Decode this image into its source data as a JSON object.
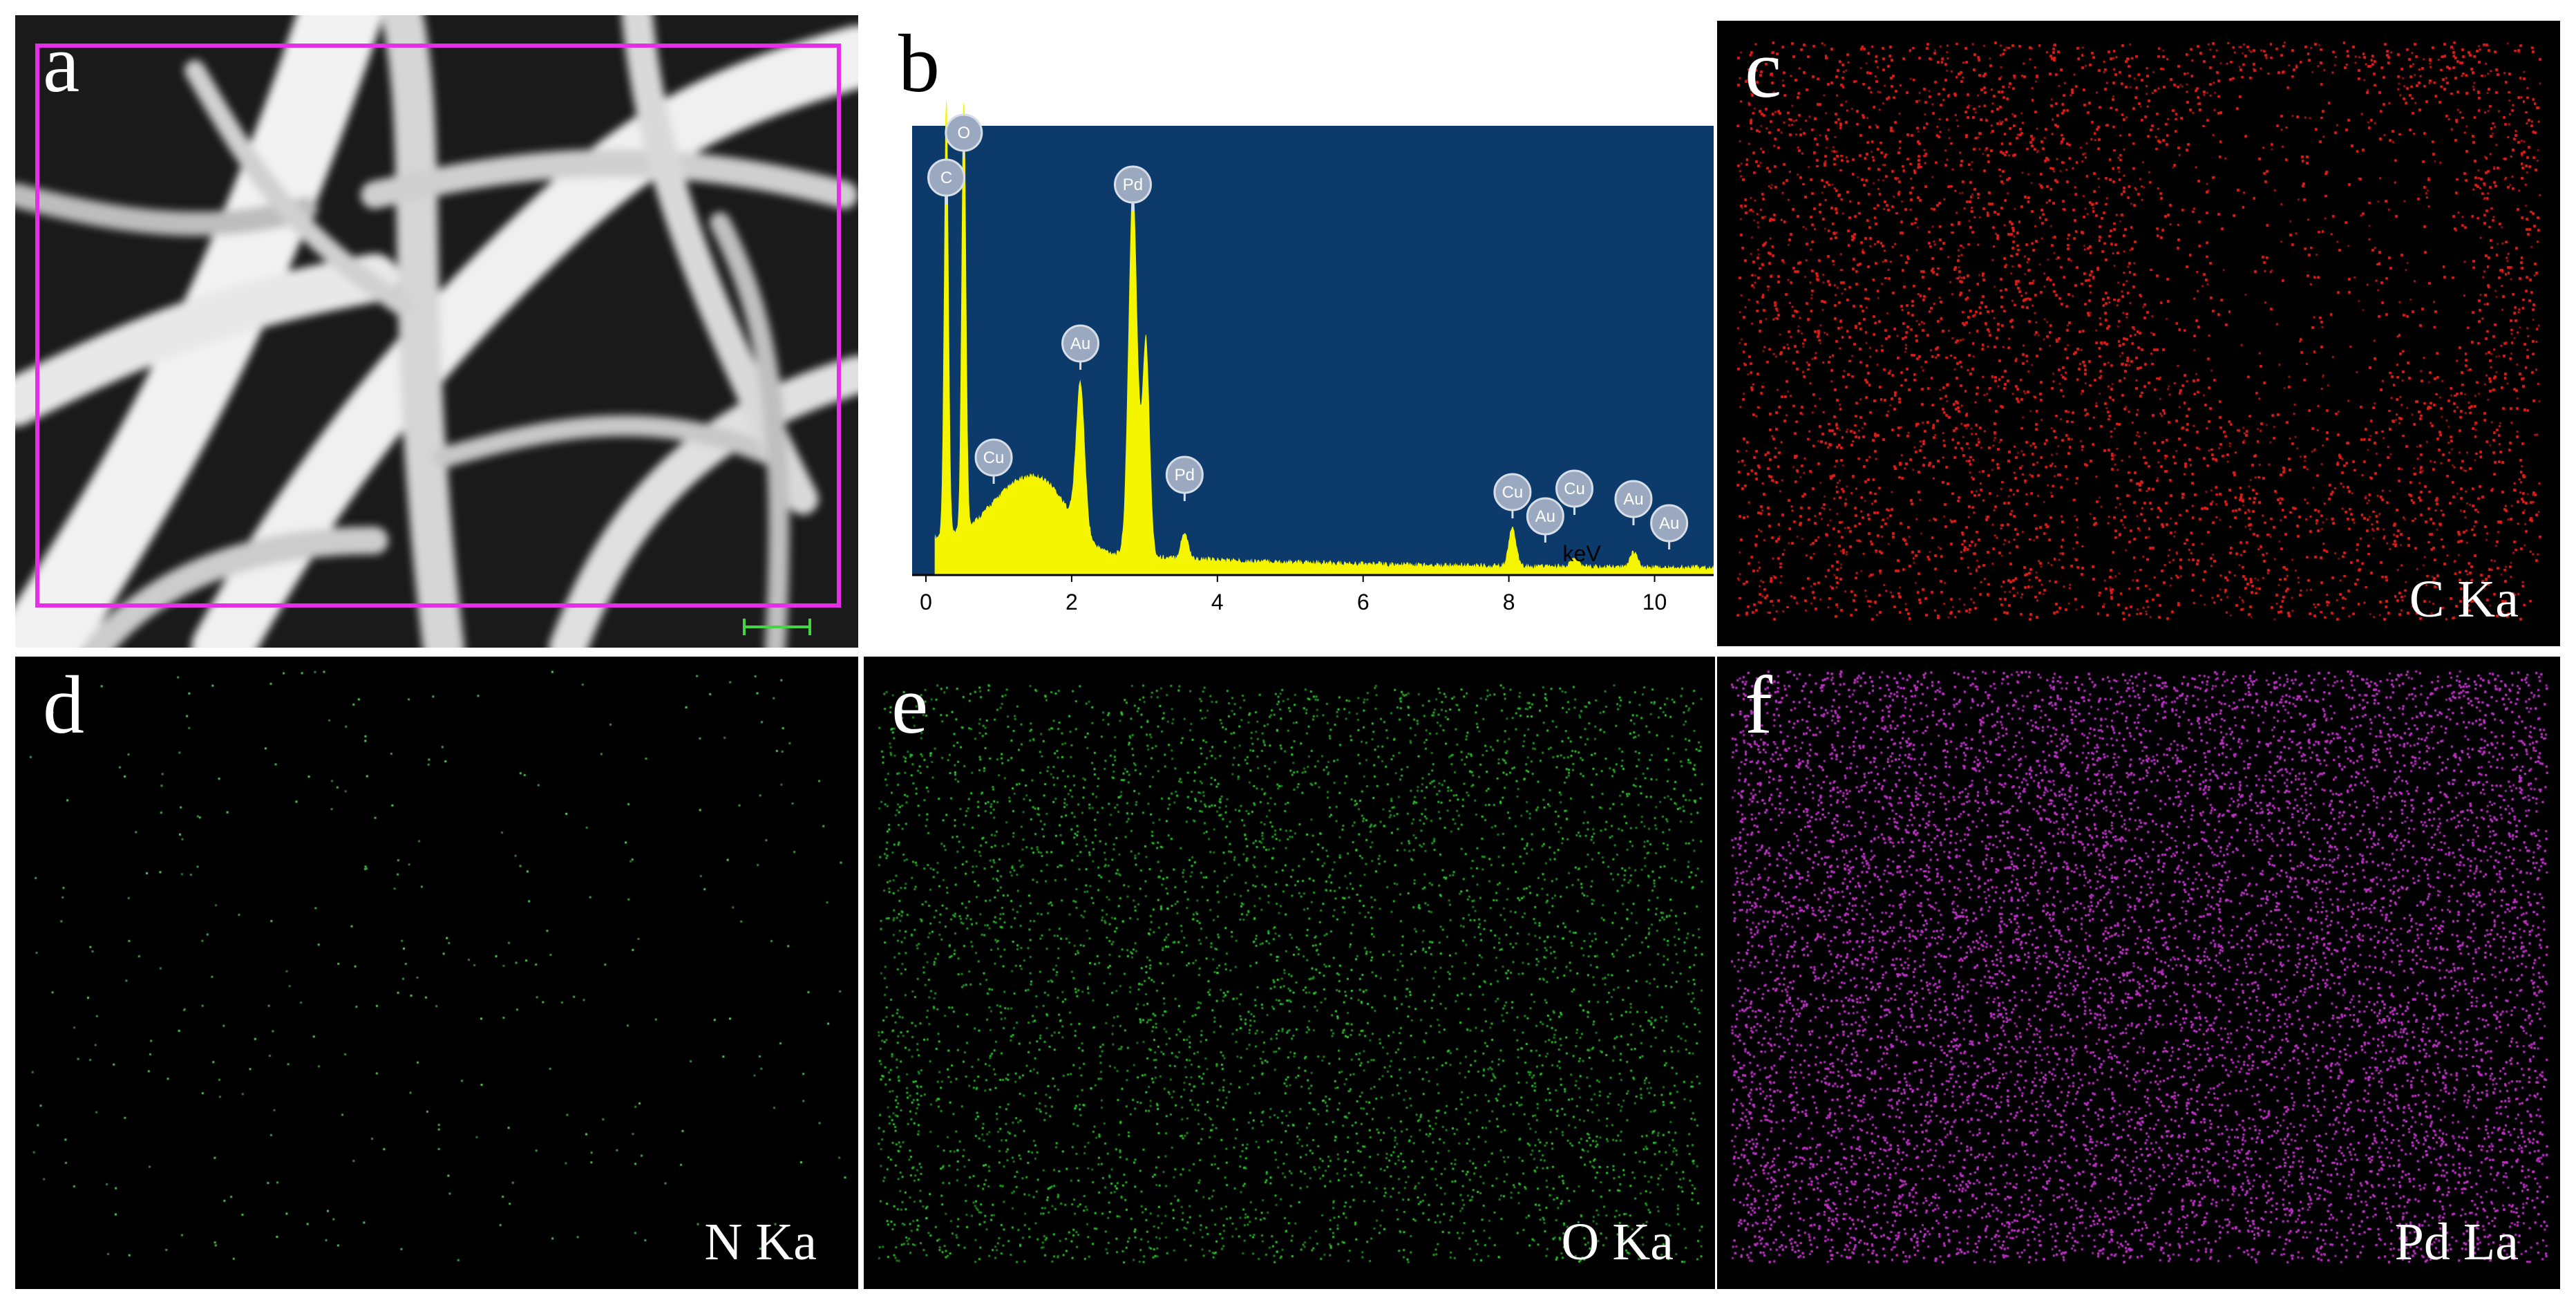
{
  "panels": {
    "a": {
      "label": "a"
    },
    "b": {
      "label": "b",
      "x_unit": "keV",
      "x_ticks": [
        "0",
        "2",
        "4",
        "6",
        "8",
        "10"
      ]
    },
    "c": {
      "label": "c",
      "map_label": "C Ka",
      "color": "#e0201a"
    },
    "d": {
      "label": "d",
      "map_label": "N Ka",
      "color": "#5fd35f"
    },
    "e": {
      "label": "e",
      "map_label": "O Ka",
      "color": "#2fcf2f"
    },
    "f": {
      "label": "f",
      "map_label": "Pd La",
      "color": "#c032c8"
    }
  },
  "chart_data": {
    "type": "line",
    "x_unit": "keV",
    "xlim": [
      0,
      11
    ],
    "x_ticks": [
      0,
      2,
      4,
      6,
      8,
      10
    ],
    "peaks": [
      {
        "element": "C",
        "energy": 0.28
      },
      {
        "element": "O",
        "energy": 0.52
      },
      {
        "element": "Cu",
        "energy": 0.93
      },
      {
        "element": "Au",
        "energy": 2.12
      },
      {
        "element": "Pd",
        "energy": 2.84
      },
      {
        "element": "Pd",
        "energy": 3.55
      },
      {
        "element": "Cu",
        "energy": 8.05
      },
      {
        "element": "Au",
        "energy": 8.5
      },
      {
        "element": "Cu",
        "energy": 8.9
      },
      {
        "element": "Au",
        "energy": 9.71
      },
      {
        "element": "Au",
        "energy": 10.2
      }
    ],
    "colors": {
      "background": "#0b3a6b",
      "spectrum": "#f5f500"
    }
  }
}
